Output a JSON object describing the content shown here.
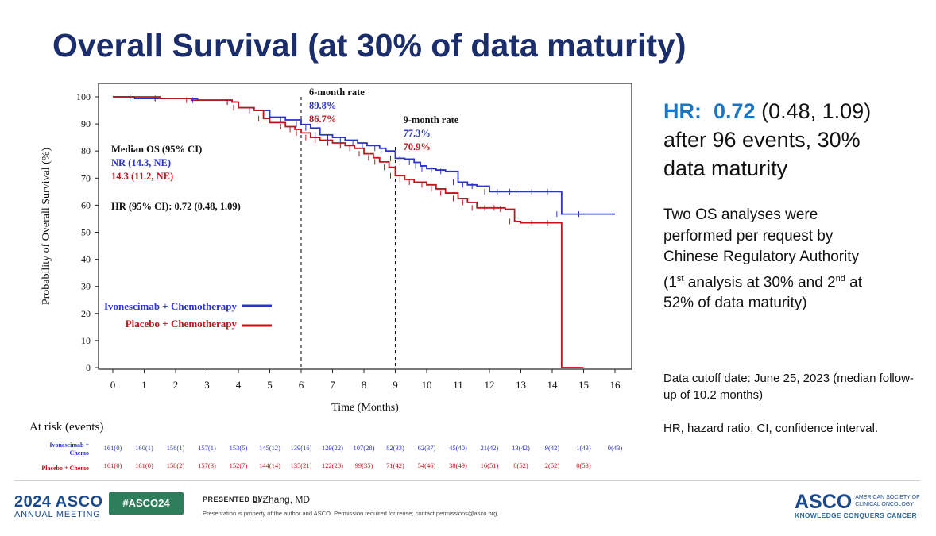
{
  "title": "Overall Survival (at 30% of data maturity)",
  "hr_block": {
    "prefix": "HR:",
    "value": "0.72",
    "ci": "(0.48, 1.09)",
    "line2": "after 96 events, 30%",
    "line3": "data maturity"
  },
  "note": {
    "line1": "Two OS analyses were",
    "line2": "performed per request by",
    "line3": "Chinese Regulatory Authority",
    "line4a": "(1",
    "line4sup1": "st",
    "line4b": " analysis at 30% and 2",
    "line4sup2": "nd",
    "line4c": " at",
    "line5": "52% of data maturity)"
  },
  "cutoff": "Data cutoff date: June 25, 2023 (median follow-up of 10.2 months)",
  "abbrev": "HR, hazard ratio; CI, confidence interval.",
  "footer": {
    "meeting_big": "2024 ASCO",
    "meeting_small": "ANNUAL MEETING",
    "hashtag": "#ASCO24",
    "presented_by": "PRESENTED BY:",
    "presenter": "Li Zhang, MD",
    "disclaimer": "Presentation is property of the author and ASCO. Permission required for reuse; contact permissions@asco.org.",
    "asco_word": "ASCO",
    "asco_society_1": "AMERICAN SOCIETY OF",
    "asco_society_2": "CLINICAL ONCOLOGY",
    "asco_tagline": "KNOWLEDGE CONQUERS CANCER"
  },
  "colors": {
    "title": "#1b2e6b",
    "ivo": "#2b33c8",
    "pbo": "#c0141b",
    "hr_accent": "#1a75c2",
    "hashtag_bg": "#2e7d5b"
  },
  "chart_data": {
    "type": "line",
    "xlabel": "Time (Months)",
    "ylabel": "Probability of Overall Survival (%)",
    "xlim": [
      0,
      16
    ],
    "ylim": [
      0,
      100
    ],
    "xticks": [
      0,
      1,
      2,
      3,
      4,
      5,
      6,
      7,
      8,
      9,
      10,
      11,
      12,
      13,
      14,
      15,
      16
    ],
    "yticks": [
      0,
      10,
      20,
      30,
      40,
      50,
      60,
      70,
      80,
      90,
      100
    ],
    "median_header": "Median OS (95% CI)",
    "hr_text": "HR (95% CI): 0.72 (0.48, 1.09)",
    "annotations": [
      {
        "x": 6,
        "label": "6-month rate",
        "ivo": "89.8%",
        "pbo": "86.7%"
      },
      {
        "x": 9,
        "label": "9-month rate",
        "ivo": "77.3%",
        "pbo": "70.9%"
      }
    ],
    "series": [
      {
        "name": "Ivonescimab + Chemotherapy",
        "median": "NR (14.3, NE)",
        "color": "#2b33c8",
        "x": [
          0,
          0.7,
          1.5,
          2.7,
          3.8,
          4.0,
          4.5,
          5.0,
          5.5,
          6.0,
          6.3,
          6.6,
          7.0,
          7.4,
          7.8,
          8.1,
          8.5,
          8.7,
          9.0,
          9.3,
          9.6,
          9.8,
          10.0,
          10.3,
          10.6,
          11.0,
          11.3,
          11.6,
          12.0,
          12.4,
          12.8,
          13.0,
          13.5,
          14.0,
          14.3,
          15.0,
          16.0
        ],
        "y": [
          100,
          99.4,
          99.4,
          98.8,
          98.1,
          96,
          95,
          92.5,
          91.5,
          89.8,
          88.5,
          86,
          85,
          84,
          83,
          82,
          81,
          80,
          77.3,
          77,
          75.8,
          74.5,
          73.5,
          73,
          72.5,
          68.5,
          67.5,
          67,
          65,
          65,
          65,
          65,
          65,
          65,
          56.7,
          56.7,
          56.7
        ]
      },
      {
        "name": "Placebo + Chemotherapy",
        "median": "14.3 (11.2, NE)",
        "color": "#c0141b",
        "x": [
          0,
          0.7,
          1.5,
          2.5,
          3.8,
          4.0,
          4.5,
          4.8,
          5.0,
          5.5,
          5.8,
          6.0,
          6.3,
          6.6,
          7.0,
          7.4,
          7.7,
          8.0,
          8.3,
          8.5,
          8.8,
          9.0,
          9.3,
          9.6,
          10.0,
          10.3,
          10.6,
          11.0,
          11.3,
          11.6,
          12.0,
          12.3,
          12.5,
          12.8,
          13.0,
          13.5,
          14.0,
          14.3,
          15.0
        ],
        "y": [
          100,
          100,
          99.4,
          98.8,
          98.1,
          96,
          95,
          92,
          90.5,
          89,
          88,
          86.7,
          85,
          84,
          83,
          82,
          81,
          79,
          77.5,
          76,
          74,
          70.9,
          69.5,
          68.5,
          67.5,
          66,
          64.5,
          62.5,
          61,
          59,
          59,
          59,
          58.5,
          54,
          53.5,
          53.5,
          53.5,
          0,
          0
        ]
      }
    ],
    "at_risk": {
      "title": "At risk (events)",
      "times": [
        0,
        1,
        2,
        3,
        4,
        5,
        6,
        7,
        8,
        9,
        10,
        11,
        12,
        13,
        14,
        15,
        16
      ],
      "rows": [
        {
          "label1": "Ivonescimab +",
          "label2": "Chemo",
          "values": [
            "161(0)",
            "160(1)",
            "158(1)",
            "157(1)",
            "153(5)",
            "145(12)",
            "139(16)",
            "129(22)",
            "107(28)",
            "82(33)",
            "62(37)",
            "45(40)",
            "21(42)",
            "13(42)",
            "9(42)",
            "1(43)",
            "0(43)"
          ]
        },
        {
          "label1": "Placebo + Chemo",
          "label2": "",
          "values": [
            "161(0)",
            "161(0)",
            "158(2)",
            "157(3)",
            "152(7)",
            "144(14)",
            "135(21)",
            "122(28)",
            "99(35)",
            "71(42)",
            "54(46)",
            "38(49)",
            "16(51)",
            "8(52)",
            "2(52)",
            "0(53)",
            ""
          ]
        }
      ]
    }
  }
}
